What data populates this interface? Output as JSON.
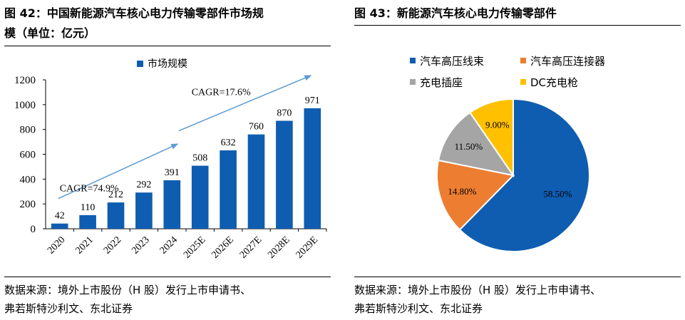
{
  "left_panel": {
    "title_line1": "图 42：中国新能源汽车核心电力传输零部件市场规",
    "title_line2": "模（单位：亿元）",
    "source_line1": "数据来源：境外上市股份（H 股）发行上市申请书、",
    "source_line2": "弗若斯特沙利文、东北证券"
  },
  "right_panel": {
    "title": "图 43：新能源汽车核心电力传输零部件",
    "source_line1": "数据来源：境外上市股份（H 股）发行上市申请书、",
    "source_line2": "弗若斯特沙利文、东北证券"
  },
  "chart_data": [
    {
      "type": "bar",
      "categories": [
        "2020",
        "2021",
        "2022",
        "2023",
        "2024",
        "2025E",
        "2026E",
        "2027E",
        "2028E",
        "2029E"
      ],
      "series": [
        {
          "name": "市场规模",
          "values": [
            42,
            110,
            212,
            292,
            391,
            508,
            632,
            760,
            870,
            971
          ]
        }
      ],
      "ylim": [
        0,
        1200
      ],
      "yticks": [
        0,
        200,
        400,
        600,
        800,
        1000,
        1200
      ],
      "legend_position": "top",
      "bar_color": "#0e5db1",
      "annotations": [
        {
          "text": "CAGR=74.9%",
          "from": "2020",
          "to": "2024"
        },
        {
          "text": "CAGR=17.6%",
          "from": "2025E",
          "to": "2029E"
        }
      ],
      "arrow_color": "#5b9bd5",
      "grid": false
    },
    {
      "type": "pie",
      "labels": [
        "汽车高压线束",
        "汽车高压连接器",
        "充电插座",
        "DC充电枪"
      ],
      "values": [
        58.5,
        14.8,
        11.5,
        9.0
      ],
      "value_labels": [
        "58.50%",
        "14.80%",
        "11.50%",
        "9.00%"
      ],
      "colors": [
        "#0e5db1",
        "#ed7d31",
        "#a5a5a5",
        "#ffc000"
      ],
      "legend_position": "top"
    }
  ]
}
